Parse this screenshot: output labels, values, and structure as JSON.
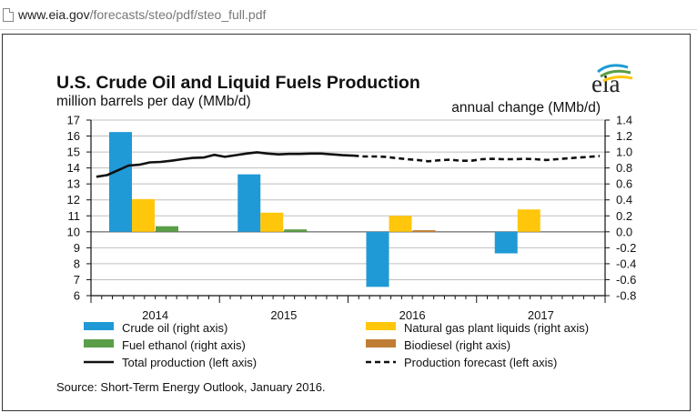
{
  "browser": {
    "url_host": "www.eia.gov",
    "url_path": "/forecasts/steo/pdf/steo_full.pdf"
  },
  "logo_text": "eia",
  "chart_data": {
    "type": "bar",
    "title": "U.S. Crude Oil and Liquid Fuels Production",
    "left_axis_label": "million barrels per day (MMb/d)",
    "right_axis_label": "annual change (MMb/d)",
    "left_ylim": [
      6,
      17
    ],
    "left_ticks": [
      17,
      16,
      15,
      14,
      13,
      12,
      11,
      10,
      9,
      8,
      7,
      6
    ],
    "right_ylim": [
      -0.8,
      1.4
    ],
    "right_ticks": [
      "1.4",
      "1.2",
      "1.0",
      "0.8",
      "0.6",
      "0.4",
      "0.2",
      "0.0",
      "-0.2",
      "-0.4",
      "-0.6",
      "-0.8"
    ],
    "categories": [
      "2014",
      "2015",
      "2016",
      "2017"
    ],
    "bar_series": [
      {
        "name": "Crude oil (right axis)",
        "color": "#1f9ad6",
        "values": [
          1.25,
          0.72,
          -0.69,
          -0.27
        ]
      },
      {
        "name": "Natural gas plant liquids (right axis)",
        "color": "#ffc60b",
        "values": [
          0.41,
          0.24,
          0.2,
          0.28
        ]
      },
      {
        "name": "Fuel ethanol (right axis)",
        "color": "#5a9e47",
        "values": [
          0.07,
          0.03,
          null,
          null
        ]
      },
      {
        "name": "Biodiesel (right axis)",
        "color": "#c07d35",
        "values": [
          null,
          null,
          0.02,
          null
        ]
      }
    ],
    "line_series": [
      {
        "name": "Total production (left axis)",
        "style": "solid",
        "months": [
          0,
          1,
          2,
          3,
          4,
          5,
          6,
          7,
          8,
          9,
          10,
          11,
          12,
          13,
          14,
          15,
          16,
          17,
          18,
          19,
          20,
          21,
          22,
          23,
          24
        ],
        "values": [
          13.45,
          13.55,
          13.85,
          14.15,
          14.2,
          14.35,
          14.38,
          14.45,
          14.55,
          14.63,
          14.65,
          14.82,
          14.7,
          14.8,
          14.9,
          14.98,
          14.9,
          14.85,
          14.88,
          14.88,
          14.9,
          14.9,
          14.85,
          14.8,
          14.77
        ]
      },
      {
        "name": "Production forecast (left axis)",
        "style": "dashed",
        "months": [
          24,
          25,
          26,
          27,
          28,
          29,
          30,
          31,
          32,
          33,
          34,
          35,
          36,
          37,
          38,
          39,
          40,
          41,
          42,
          43,
          44,
          45,
          46,
          47
        ],
        "values": [
          14.77,
          14.72,
          14.72,
          14.7,
          14.62,
          14.55,
          14.5,
          14.42,
          14.48,
          14.52,
          14.45,
          14.45,
          14.55,
          14.57,
          14.55,
          14.55,
          14.57,
          14.55,
          14.5,
          14.55,
          14.6,
          14.65,
          14.7,
          14.75
        ]
      }
    ],
    "legend": [
      {
        "label": "Crude oil (right axis)",
        "kind": "box",
        "color": "#1f9ad6"
      },
      {
        "label": "Natural gas plant liquids (right axis)",
        "kind": "box",
        "color": "#ffc60b"
      },
      {
        "label": "Fuel ethanol (right axis)",
        "kind": "box",
        "color": "#5a9e47"
      },
      {
        "label": "Biodiesel (right axis)",
        "kind": "box",
        "color": "#c07d35"
      },
      {
        "label": "Total production (left axis)",
        "kind": "line",
        "color": "#111111"
      },
      {
        "label": "Production forecast (left axis)",
        "kind": "dash",
        "color": "#111111"
      }
    ],
    "source": "Source: Short-Term Energy Outlook, January 2016.",
    "grid": true
  }
}
